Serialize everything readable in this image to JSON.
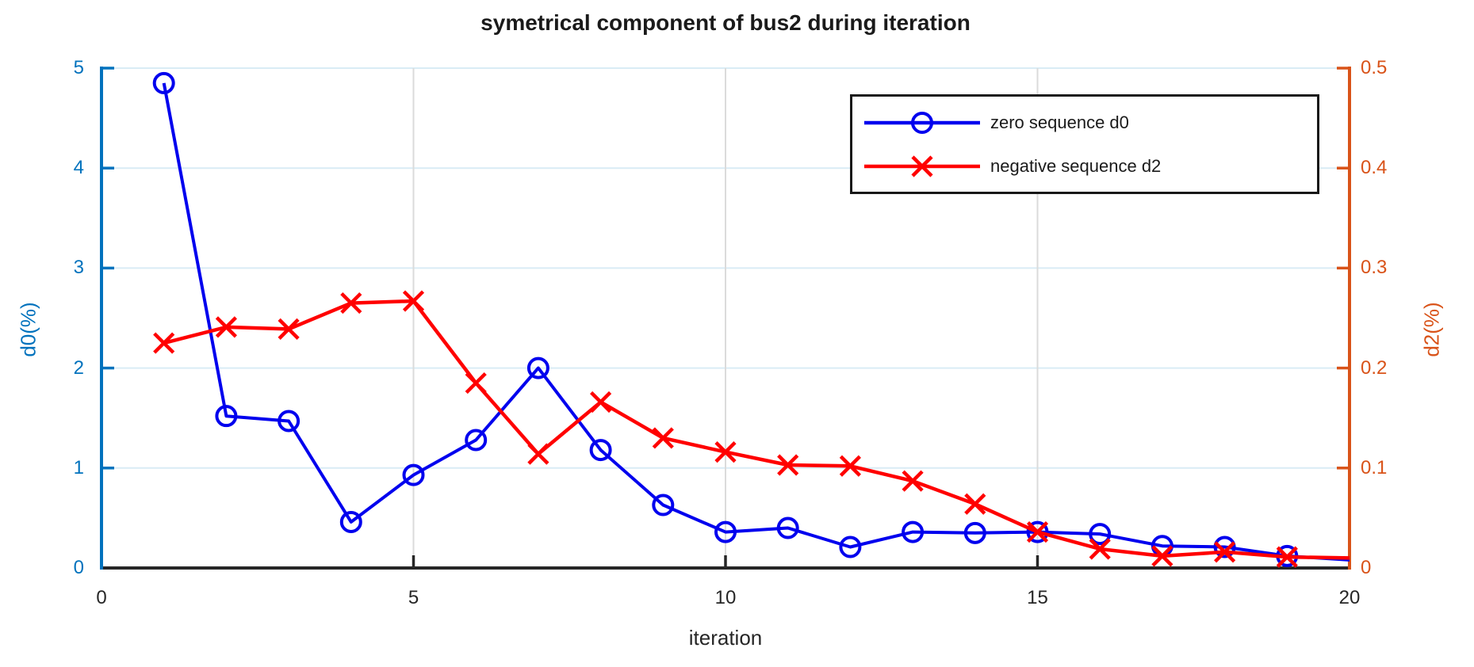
{
  "colors": {
    "background": "#FFFFFF",
    "axis_x": "#262626",
    "axis_left": "#0072BD",
    "axis_right": "#D95319",
    "grid_horizontal": "#D9ECF5",
    "grid_vertical": "#DBDBDB",
    "series_blue": "#0000EE",
    "series_red": "#FF0000"
  },
  "chart_data": {
    "type": "line",
    "title": "symetrical component of bus2 during iteration",
    "xlabel": "iteration",
    "ylabel_left": "d0(%)",
    "ylabel_right": "d2(%)",
    "xlim": [
      0,
      20
    ],
    "ylim_left": [
      0,
      5
    ],
    "ylim_right": [
      0,
      0.5
    ],
    "xticks": [
      0,
      5,
      10,
      15,
      20
    ],
    "yticks_left": [
      "0",
      "1",
      "2",
      "3",
      "4",
      "5"
    ],
    "yticks_right": [
      "0",
      "0.1",
      "0.2",
      "0.3",
      "0.4",
      "0.5"
    ],
    "grid": true,
    "legend_position": "upper right inside",
    "x": [
      1,
      2,
      3,
      4,
      5,
      6,
      7,
      8,
      9,
      10,
      11,
      12,
      13,
      14,
      15,
      16,
      17,
      18,
      19,
      20
    ],
    "series": [
      {
        "name": "zero sequence d0",
        "axis": "left",
        "color": "#0000EE",
        "marker": "circle",
        "marker_skip_last": true,
        "values": [
          4.85,
          1.52,
          1.47,
          0.46,
          0.93,
          1.28,
          2.0,
          1.18,
          0.63,
          0.36,
          0.4,
          0.21,
          0.36,
          0.35,
          0.36,
          0.34,
          0.22,
          0.21,
          0.12,
          0.08
        ]
      },
      {
        "name": "negative sequence d2",
        "axis": "right",
        "color": "#FF0000",
        "marker": "x",
        "marker_skip_last": true,
        "values": [
          0.225,
          0.241,
          0.239,
          0.265,
          0.267,
          0.185,
          0.114,
          0.166,
          0.13,
          0.116,
          0.103,
          0.102,
          0.087,
          0.064,
          0.036,
          0.019,
          0.012,
          0.016,
          0.011,
          0.01
        ]
      }
    ]
  }
}
